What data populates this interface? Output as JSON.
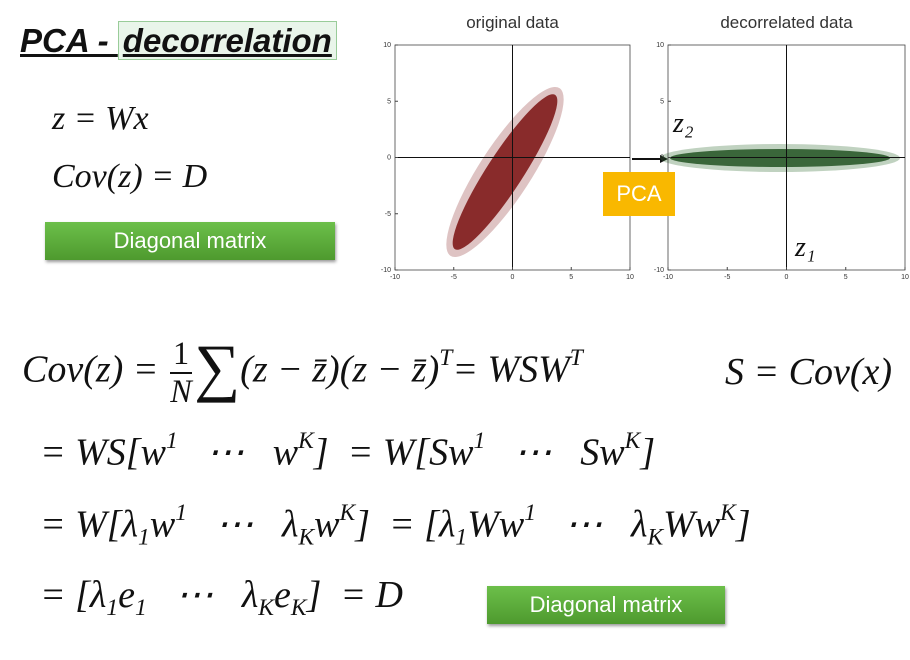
{
  "title": {
    "prefix": "PCA - ",
    "highlight": "decorrelation"
  },
  "left_equations": [
    "z = Wx",
    "Cov(z) = D"
  ],
  "badge_top": "Diagonal matrix",
  "plots": [
    {
      "title": "original data",
      "title_color": "#9b2a2a",
      "xticks": [
        -10,
        -5,
        0,
        5,
        10
      ],
      "yticks": [
        10,
        5,
        0,
        -5,
        -10
      ],
      "xlim": [
        -10,
        10
      ],
      "ylim": [
        -10,
        10
      ]
    },
    {
      "title": "decorrelated data",
      "title_color": "#3d7a3d",
      "xticks": [
        -10,
        -5,
        0,
        5,
        10
      ],
      "yticks": [
        10,
        5,
        0,
        -5,
        -10
      ],
      "xlim": [
        -10,
        10
      ],
      "ylim": [
        -10,
        10
      ]
    }
  ],
  "pca_label": "PCA",
  "z2_label": "z₂",
  "z1_label": "z₁",
  "derivation": [
    [
      "Cov(z) = ",
      {
        "num": "1",
        "den": "N"
      },
      {
        "text": "∑",
        "pos": "big"
      },
      "(z − z̄)(z − z̄)",
      {
        "text": "T",
        "pos": "sup"
      },
      "= WSW",
      {
        "text": "T",
        "pos": "sup"
      }
    ],
    [
      "= WS[w",
      {
        "text": "1",
        "pos": "sup"
      },
      "   ⋯   w",
      {
        "text": "K",
        "pos": "sup"
      },
      "]  = W[Sw",
      {
        "text": "1",
        "pos": "sup"
      },
      "   ⋯   Sw",
      {
        "text": "K",
        "pos": "sup"
      },
      "]"
    ],
    [
      "= W[λ",
      {
        "text": "1",
        "pos": "sub"
      },
      "w",
      {
        "text": "1",
        "pos": "sup"
      },
      "   ⋯   λ",
      {
        "text": "K",
        "pos": "sub"
      },
      "w",
      {
        "text": "K",
        "pos": "sup"
      },
      "]  = [λ",
      {
        "text": "1",
        "pos": "sub"
      },
      "Ww",
      {
        "text": "1",
        "pos": "sup"
      },
      "   ⋯   λ",
      {
        "text": "K",
        "pos": "sub"
      },
      "Ww",
      {
        "text": "K",
        "pos": "sup"
      },
      "]"
    ],
    [
      "= [λ",
      {
        "text": "1",
        "pos": "sub"
      },
      "e",
      {
        "text": "1",
        "pos": "sub"
      },
      "   ⋯   λ",
      {
        "text": "K",
        "pos": "sub"
      },
      "e",
      {
        "text": "K",
        "pos": "sub"
      },
      "]  = D"
    ]
  ],
  "s_definition": "S = Cov(x)",
  "badge_bottom": "Diagonal matrix"
}
